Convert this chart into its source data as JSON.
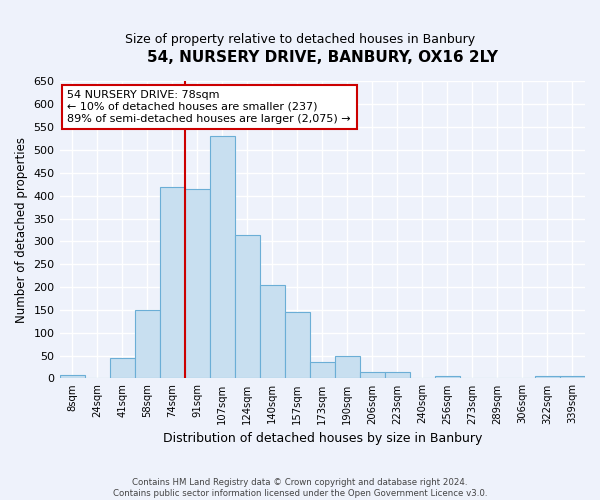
{
  "title": "54, NURSERY DRIVE, BANBURY, OX16 2LY",
  "subtitle": "Size of property relative to detached houses in Banbury",
  "xlabel": "Distribution of detached houses by size in Banbury",
  "ylabel": "Number of detached properties",
  "bar_labels": [
    "8sqm",
    "24sqm",
    "41sqm",
    "58sqm",
    "74sqm",
    "91sqm",
    "107sqm",
    "124sqm",
    "140sqm",
    "157sqm",
    "173sqm",
    "190sqm",
    "206sqm",
    "223sqm",
    "240sqm",
    "256sqm",
    "273sqm",
    "289sqm",
    "306sqm",
    "322sqm",
    "339sqm"
  ],
  "bar_values": [
    8,
    0,
    45,
    150,
    420,
    415,
    530,
    315,
    205,
    145,
    35,
    50,
    15,
    15,
    0,
    5,
    0,
    0,
    0,
    5,
    5
  ],
  "bar_color": "#c8dff0",
  "bar_edge_color": "#6baed6",
  "ylim": [
    0,
    650
  ],
  "yticks": [
    0,
    50,
    100,
    150,
    200,
    250,
    300,
    350,
    400,
    450,
    500,
    550,
    600,
    650
  ],
  "property_line_label": "54 NURSERY DRIVE: 78sqm",
  "annotation_line1": "← 10% of detached houses are smaller (237)",
  "annotation_line2": "89% of semi-detached houses are larger (2,075) →",
  "line_color": "#cc0000",
  "annotation_box_color": "#ffffff",
  "annotation_box_edge_color": "#cc0000",
  "footer_line1": "Contains HM Land Registry data © Crown copyright and database right 2024.",
  "footer_line2": "Contains public sector information licensed under the Open Government Licence v3.0.",
  "bg_color": "#eef2fb",
  "grid_color": "#ffffff",
  "red_line_x": 4.5
}
